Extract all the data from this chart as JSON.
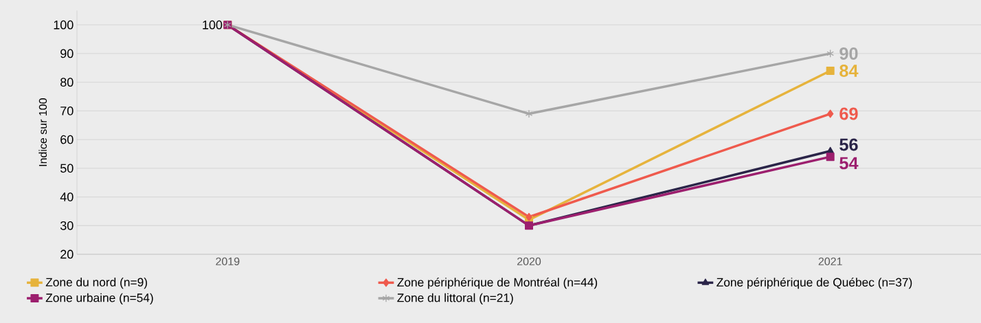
{
  "chart_data": {
    "type": "line",
    "ylabel": "Indice sur 100",
    "categories": [
      "2019",
      "2020",
      "2021"
    ],
    "ylim": [
      20,
      105
    ],
    "yticks": [
      20,
      30,
      40,
      50,
      60,
      70,
      80,
      90,
      100
    ],
    "grid": "y",
    "legend": "bottom",
    "series": [
      {
        "name": "Zone du nord (n=9)",
        "color": "#e6b33c",
        "marker": "square",
        "values": [
          100,
          32,
          84
        ],
        "value_labels": [
          null,
          null,
          "84"
        ]
      },
      {
        "name": "Zone périphérique de Montréal (n=44)",
        "color": "#ef5a4d",
        "marker": "diamond",
        "values": [
          100,
          33,
          69
        ],
        "value_labels": [
          null,
          null,
          "69"
        ]
      },
      {
        "name": "Zone périphérique de Québec (n=37)",
        "color": "#2a2448",
        "marker": "triangle",
        "values": [
          100,
          30,
          56
        ],
        "value_labels": [
          null,
          null,
          "56"
        ]
      },
      {
        "name": "Zone urbaine (n=54)",
        "color": "#9c1f6e",
        "marker": "square",
        "values": [
          100,
          30,
          54
        ],
        "value_labels": [
          "100",
          null,
          "54"
        ]
      },
      {
        "name": "Zone du littoral (n=21)",
        "color": "#a6a6a6",
        "marker": "cross",
        "values": [
          100,
          69,
          90
        ],
        "value_labels": [
          null,
          null,
          "90"
        ]
      }
    ]
  }
}
